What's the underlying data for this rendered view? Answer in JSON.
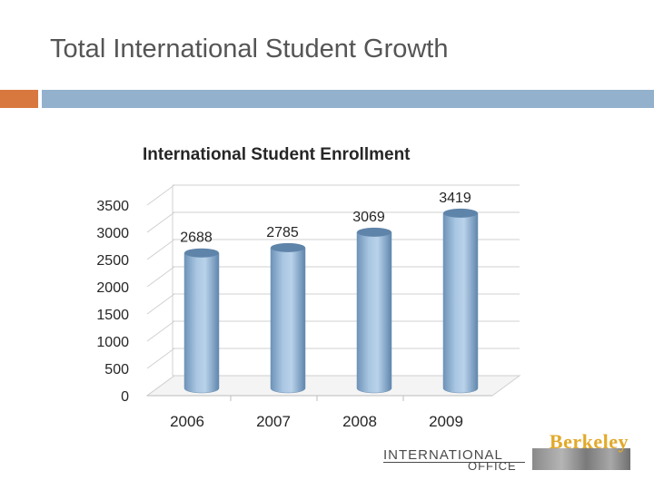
{
  "slide": {
    "title": "Total International Student Growth"
  },
  "chart_data": {
    "type": "bar",
    "title": "International Student Enrollment",
    "categories": [
      "2006",
      "2007",
      "2008",
      "2009"
    ],
    "values": [
      2688,
      2785,
      3069,
      3419
    ],
    "value_labels": [
      "2688",
      "2785",
      "3069",
      "3419"
    ],
    "y_ticks": [
      "0",
      "500",
      "1000",
      "1500",
      "2000",
      "2500",
      "3000",
      "3500"
    ],
    "ylim": [
      0,
      3500
    ],
    "grid": true,
    "legend": "none",
    "bar_color": "#8fb4d8",
    "xlabel": "",
    "ylabel": ""
  },
  "logo": {
    "berkeley": "Berkeley",
    "international": "INTERNATIONAL",
    "office": "OFFICE"
  },
  "colors": {
    "accent_orange": "#d8783e",
    "accent_blue": "#93b1cd"
  }
}
